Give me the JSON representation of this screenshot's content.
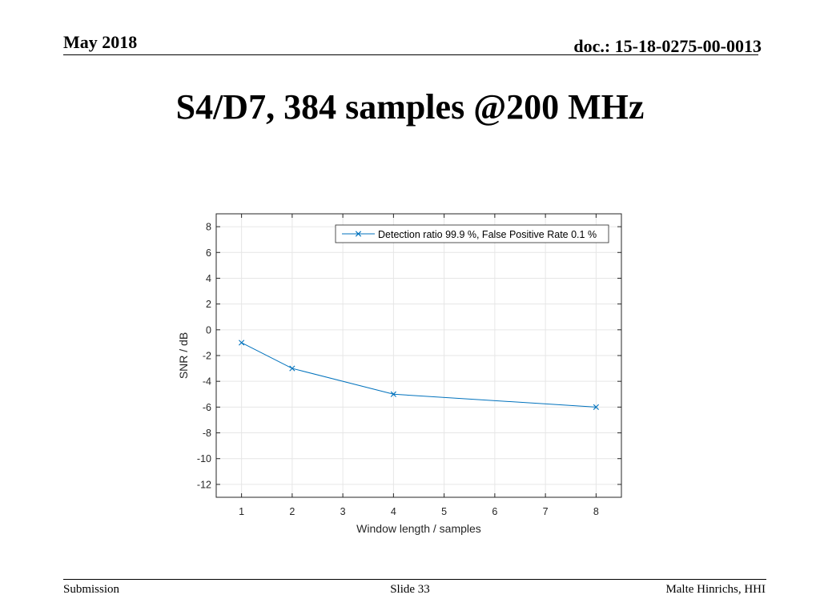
{
  "header": {
    "date": "May 2018",
    "doc": "doc.: 15-18-0275-00-0013"
  },
  "slide": {
    "title": "S4/D7, 384 samples @200 MHz"
  },
  "footer": {
    "left": "Submission",
    "center": "Slide 33",
    "right": "Malte Hinrichs, HHI"
  },
  "chart_data": {
    "type": "line",
    "title": "",
    "xlabel": "Window length / samples",
    "ylabel": "SNR / dB",
    "xlim": [
      0.5,
      8.5
    ],
    "ylim": [
      -13,
      9
    ],
    "xticks": [
      1,
      2,
      3,
      4,
      5,
      6,
      7,
      8
    ],
    "yticks": [
      -12,
      -10,
      -8,
      -6,
      -4,
      -2,
      0,
      2,
      4,
      6,
      8
    ],
    "grid": true,
    "legend_position": "top-right",
    "series": [
      {
        "name": "Detection ratio 99.9 %, False Positive Rate 0.1 %",
        "color": "#0072bd",
        "marker": "x",
        "x": [
          1,
          2,
          4,
          8
        ],
        "y": [
          -1,
          -3,
          -5,
          -6
        ]
      }
    ]
  }
}
